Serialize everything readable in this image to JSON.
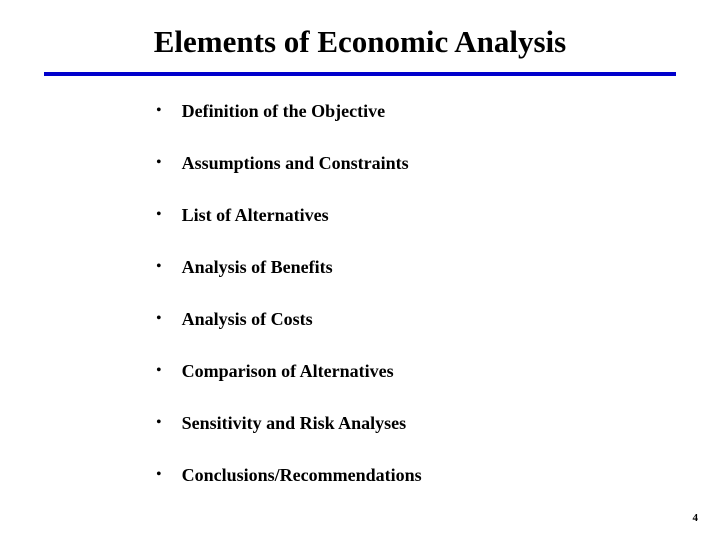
{
  "slide": {
    "title": "Elements of Economic Analysis",
    "divider_color": "#0000cc",
    "bullets": [
      "Definition of the Objective",
      "Assumptions and Constraints",
      "List of Alternatives",
      "Analysis of Benefits",
      "Analysis of Costs",
      "Comparison of Alternatives",
      "Sensitivity and Risk Analyses",
      "Conclusions/Recommendations"
    ],
    "page_number": "4",
    "background_color": "#ffffff",
    "text_color": "#000000",
    "title_fontsize": 31,
    "bullet_fontsize": 18,
    "bullet_marker": "•"
  }
}
